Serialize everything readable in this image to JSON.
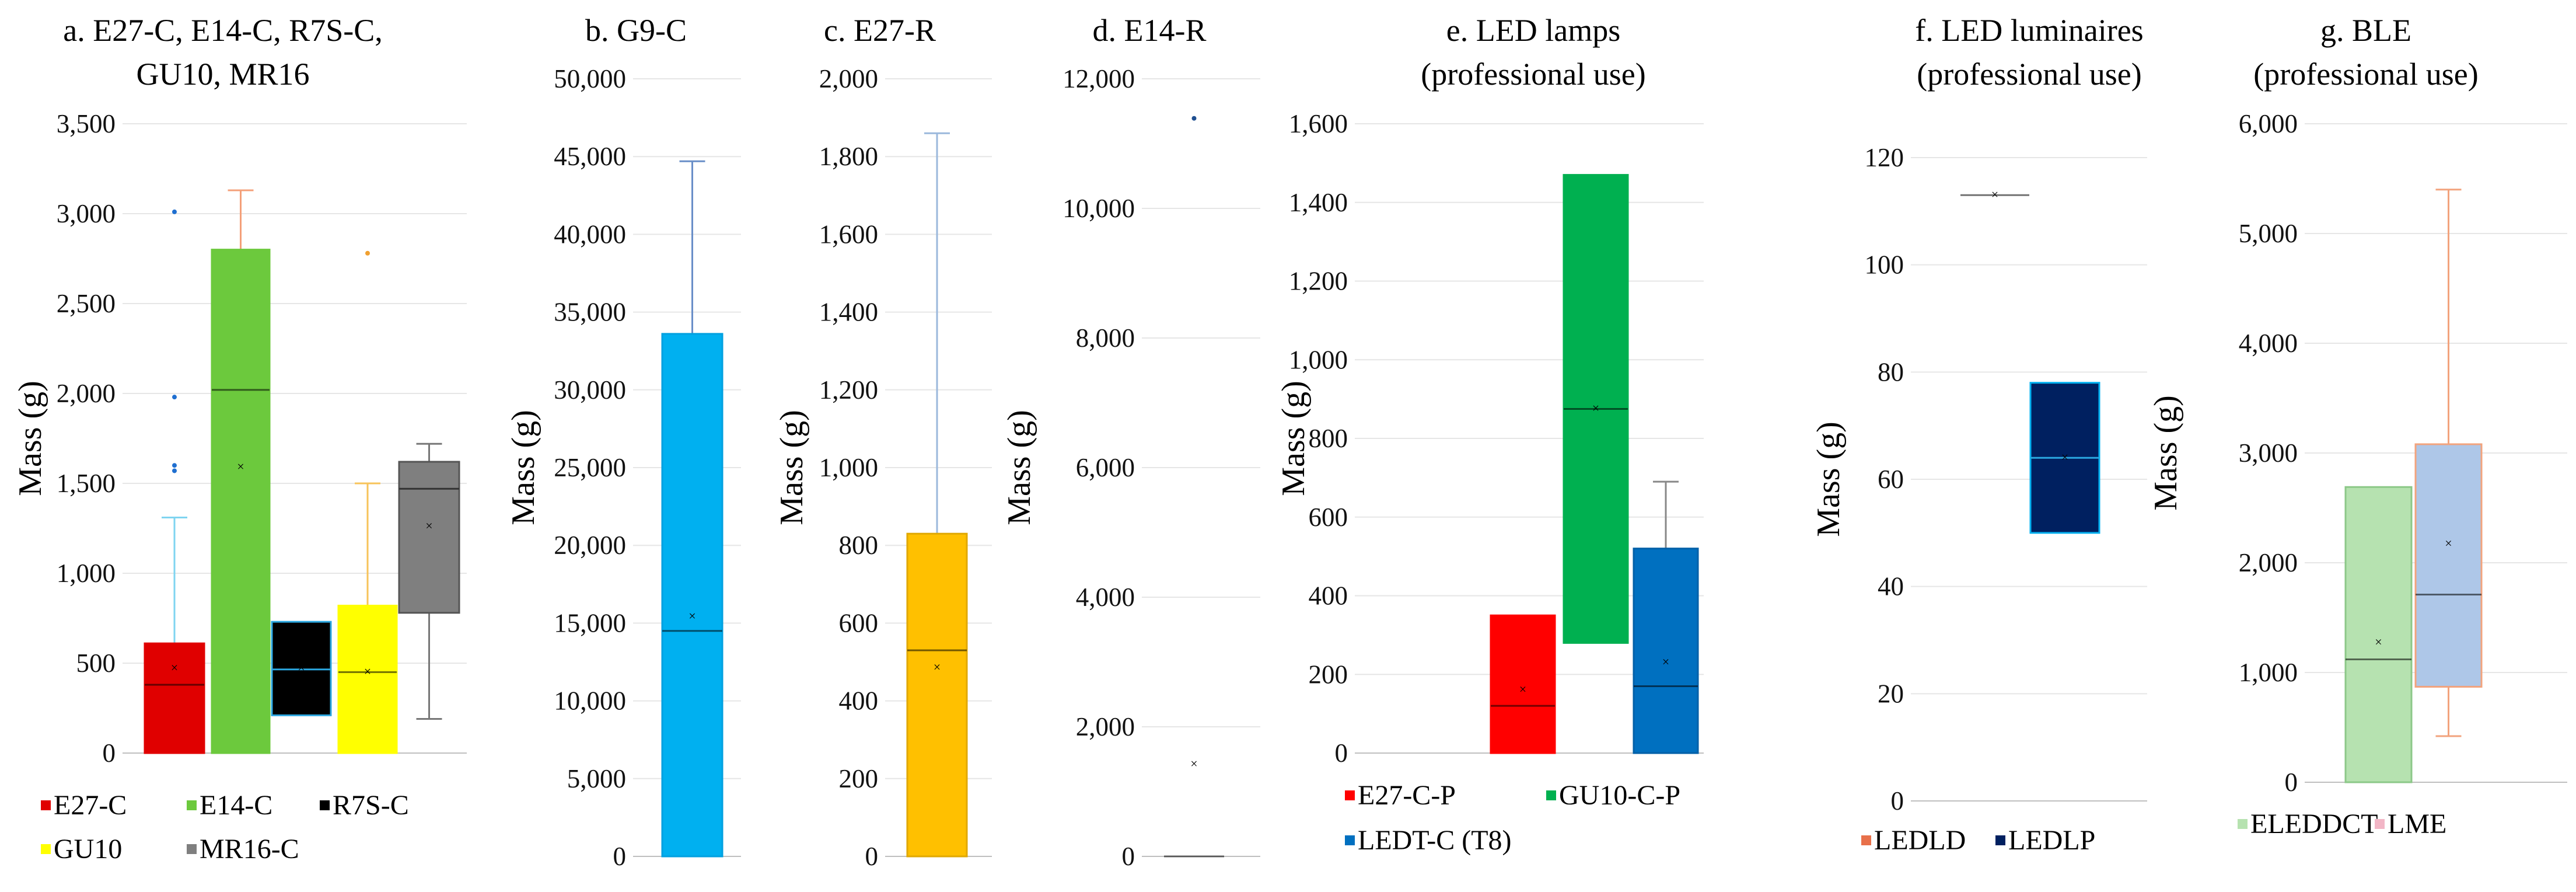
{
  "chart_data": [
    {
      "id": "a",
      "type": "box",
      "title_lines": [
        "a. E27-C, E14-C, R7S-C,",
        "GU10, MR16"
      ],
      "ylabel": "Mass (g)",
      "ylim": [
        0,
        3500
      ],
      "yticks": [
        0,
        500,
        1000,
        1500,
        2000,
        2500,
        3000,
        3500
      ],
      "tick_labels": [
        "0",
        "500",
        "1,000",
        "1,500",
        "2,000",
        "2,500",
        "3,000",
        "3,500"
      ],
      "series": [
        {
          "name": "E27-C",
          "color": "#e00000",
          "outline": "#e00000",
          "whisker_color": "#7fd4f0",
          "q1": 0,
          "median": 380,
          "q3": 610,
          "whisker_low": 0,
          "whisker_high": 1310,
          "mean": 470,
          "outliers": [
            1570,
            1600,
            1980,
            3010
          ],
          "outlier_color": "#1f6fd0"
        },
        {
          "name": "E14-C",
          "color": "#6cc93d",
          "outline": "#6cc93d",
          "whisker_color": "#f4a07a",
          "q1": 0,
          "median": 2020,
          "q3": 2800,
          "whisker_low": 0,
          "whisker_high": 3130,
          "mean": 1590,
          "outliers": [],
          "outlier_color": "#e07050"
        },
        {
          "name": "R7S-C",
          "color": "#000000",
          "outline": "#2aa7e0",
          "whisker_color": "#2aa7e0",
          "q1": 210,
          "median": 465,
          "q3": 730,
          "whisker_low": 210,
          "whisker_high": 730,
          "mean": 470,
          "outliers": [],
          "outlier_color": "#2aa7e0"
        },
        {
          "name": "GU10",
          "color": "#ffff00",
          "outline": "#ffff00",
          "whisker_color": "#f7c35a",
          "q1": 0,
          "median": 450,
          "q3": 820,
          "whisker_low": 0,
          "whisker_high": 1500,
          "mean": 450,
          "outliers": [
            2780
          ],
          "outlier_color": "#f0a030"
        },
        {
          "name": "MR16-C",
          "color": "#7f7f7f",
          "outline": "#555555",
          "whisker_color": "#777777",
          "q1": 780,
          "median": 1470,
          "q3": 1620,
          "whisker_low": 190,
          "whisker_high": 1720,
          "mean": 1260,
          "outliers": [],
          "outlier_color": "#333333"
        }
      ],
      "legend": [
        "E27-C",
        "E14-C",
        "R7S-C",
        "GU10",
        "MR16-C"
      ]
    },
    {
      "id": "b",
      "type": "box",
      "title_lines": [
        "b. G9-C"
      ],
      "ylabel": "Mass (g)",
      "ylim": [
        0,
        50000
      ],
      "yticks": [
        0,
        5000,
        10000,
        15000,
        20000,
        25000,
        30000,
        35000,
        40000,
        45000,
        50000
      ],
      "tick_labels": [
        "0",
        "5,000",
        "10,000",
        "15,000",
        "20,000",
        "25,000",
        "30,000",
        "35,000",
        "40,000",
        "45,000",
        "50,000"
      ],
      "series": [
        {
          "name": "G9-C",
          "color": "#00b0f0",
          "outline": "#00a0e0",
          "whisker_color": "#6a8fc8",
          "q1": 0,
          "median": 14500,
          "q3": 33600,
          "whisker_low": 0,
          "whisker_high": 44700,
          "mean": 15400,
          "outliers": [],
          "outlier_color": "#1f6fd0"
        }
      ],
      "legend": []
    },
    {
      "id": "c",
      "type": "box",
      "title_lines": [
        "c. E27-R"
      ],
      "ylabel": "Mass (g)",
      "ylim": [
        0,
        2000
      ],
      "yticks": [
        0,
        200,
        400,
        600,
        800,
        1000,
        1200,
        1400,
        1600,
        1800,
        2000
      ],
      "tick_labels": [
        "0",
        "200",
        "400",
        "600",
        "800",
        "1,000",
        "1,200",
        "1,400",
        "1,600",
        "1,800",
        "2,000"
      ],
      "series": [
        {
          "name": "E27-R",
          "color": "#ffc000",
          "outline": "#e0a800",
          "whisker_color": "#9bb8dc",
          "q1": 0,
          "median": 530,
          "q3": 830,
          "whisker_low": 0,
          "whisker_high": 1860,
          "mean": 485,
          "outliers": [],
          "outlier_color": "#1f6fd0"
        }
      ],
      "legend": []
    },
    {
      "id": "d",
      "type": "box",
      "title_lines": [
        "d. E14-R"
      ],
      "ylabel": "Mass (g)",
      "ylim": [
        0,
        12000
      ],
      "yticks": [
        0,
        2000,
        4000,
        6000,
        8000,
        10000,
        12000
      ],
      "tick_labels": [
        "0",
        "2,000",
        "4,000",
        "6,000",
        "8,000",
        "10,000",
        "12,000"
      ],
      "series": [
        {
          "name": "E14-R",
          "color": "#4472c4",
          "outline": "#4472c4",
          "whisker_color": "#4472c4",
          "q1": 0,
          "median": 0,
          "q3": 0,
          "whisker_low": 0,
          "whisker_high": 0,
          "mean": 1420,
          "outliers": [
            11390
          ],
          "outlier_color": "#1f4f90"
        }
      ],
      "legend": []
    },
    {
      "id": "e",
      "type": "box",
      "title_lines": [
        "e. LED lamps",
        "(professional use)"
      ],
      "ylabel": "Mass (g)",
      "ylim": [
        0,
        1600
      ],
      "yticks": [
        0,
        200,
        400,
        600,
        800,
        1000,
        1200,
        1400,
        1600
      ],
      "tick_labels": [
        "0",
        "200",
        "400",
        "600",
        "800",
        "1,000",
        "1,200",
        "1,400",
        "1,600"
      ],
      "series": [
        {
          "name": "E27-C-P",
          "color": "#ff0000",
          "outline": "#ff0000",
          "whisker_color": "#ff0000",
          "q1": 0,
          "median": 120,
          "q3": 350,
          "whisker_low": 0,
          "whisker_high": 350,
          "mean": 160,
          "outliers": [],
          "outlier_color": "#ff0000"
        },
        {
          "name": "GU10-C-P",
          "color": "#00b050",
          "outline": "#00b050",
          "whisker_color": "#00b050",
          "q1": 280,
          "median": 875,
          "q3": 1470,
          "whisker_low": 280,
          "whisker_high": 1470,
          "mean": 875,
          "outliers": [],
          "outlier_color": "#00b050"
        },
        {
          "name": "LEDT-C (T8)",
          "color": "#0070c0",
          "outline": "#0060a8",
          "whisker_color": "#888888",
          "q1": 0,
          "median": 170,
          "q3": 520,
          "whisker_low": 0,
          "whisker_high": 690,
          "mean": 230,
          "outliers": [],
          "outlier_color": "#0070c0"
        }
      ],
      "legend": [
        "E27-C-P",
        "GU10-C-P",
        "LEDT-C (T8)"
      ]
    },
    {
      "id": "f",
      "type": "box",
      "title_lines": [
        "f. LED luminaires",
        "(professional use)"
      ],
      "ylabel": "Mass (g)",
      "ylim": [
        0,
        120
      ],
      "yticks": [
        0,
        20,
        40,
        60,
        80,
        100,
        120
      ],
      "tick_labels": [
        "0",
        "20",
        "40",
        "60",
        "80",
        "100",
        "120"
      ],
      "series": [
        {
          "name": "LEDLD",
          "color": "#e8704a",
          "outline": "#4472c4",
          "whisker_color": "#4472c4",
          "q1": 113,
          "median": 113,
          "q3": 113,
          "whisker_low": 113,
          "whisker_high": 113,
          "mean": 113,
          "outliers": [],
          "outlier_color": "#4472c4"
        },
        {
          "name": "LEDLP",
          "color": "#002060",
          "outline": "#00b0f0",
          "whisker_color": "#00b0f0",
          "q1": 50,
          "median": 64,
          "q3": 78,
          "whisker_low": 50,
          "whisker_high": 78,
          "mean": 64,
          "outliers": [],
          "outlier_color": "#00b0f0"
        }
      ],
      "legend": [
        "LEDLD",
        "LEDLP"
      ]
    },
    {
      "id": "g",
      "type": "box",
      "title_lines": [
        "g. BLE",
        "(professional use)"
      ],
      "ylabel": "Mass (g)",
      "ylim": [
        0,
        6000
      ],
      "yticks": [
        0,
        1000,
        2000,
        3000,
        4000,
        5000,
        6000
      ],
      "tick_labels": [
        "0",
        "1,000",
        "2,000",
        "3,000",
        "4,000",
        "5,000",
        "6,000"
      ],
      "series": [
        {
          "name": "ELEDDCT",
          "color": "#b6e2b0",
          "outline": "#8cc888",
          "whisker_color": "#8cc888",
          "q1": 0,
          "median": 1120,
          "q3": 2690,
          "whisker_low": 0,
          "whisker_high": 2690,
          "mean": 1270,
          "outliers": [],
          "outlier_color": "#8cc888"
        },
        {
          "name": "LME",
          "color": "#aec7e8",
          "outline": "#f2a37d",
          "whisker_color": "#f2a37d",
          "q1": 870,
          "median": 1710,
          "q3": 3080,
          "whisker_low": 420,
          "whisker_high": 5400,
          "mean": 2170,
          "outliers": [],
          "outlier_color": "#f2a37d"
        }
      ],
      "legend": [
        "ELEDDCT",
        "LME"
      ],
      "legend_marker_colors": [
        "#b6e2b0",
        "#f2b6c6"
      ]
    }
  ]
}
